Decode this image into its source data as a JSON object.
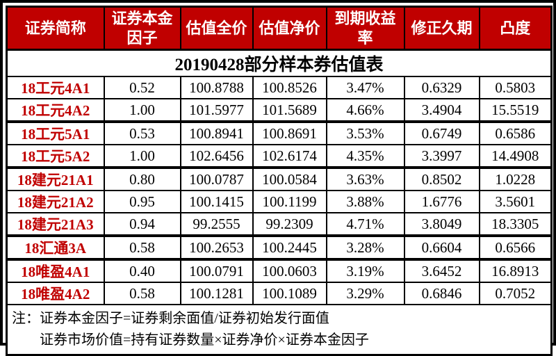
{
  "title": "20190428部分样本券估值表",
  "colors": {
    "header_background": "#c00000",
    "header_text": "#ffffff",
    "row_label_text": "#c00000",
    "border": "#000000",
    "body_text": "#000000",
    "page_background": "#ffffff"
  },
  "table": {
    "headers": [
      "证券简称",
      "证券本金因子",
      "估值全价",
      "估值净价",
      "到期收益率",
      "修正久期",
      "凸度"
    ],
    "rows": [
      {
        "name": "18工元4A1",
        "factor": "0.52",
        "full_price": "100.8788",
        "net_price": "100.8526",
        "ytm": "3.47%",
        "duration": "0.6329",
        "convexity": "0.5803"
      },
      {
        "name": "18工元4A2",
        "factor": "1.00",
        "full_price": "101.5977",
        "net_price": "101.5689",
        "ytm": "4.66%",
        "duration": "3.4904",
        "convexity": "15.5519"
      },
      {
        "name": "18工元5A1",
        "factor": "0.53",
        "full_price": "100.8941",
        "net_price": "100.8691",
        "ytm": "3.53%",
        "duration": "0.6749",
        "convexity": "0.6586"
      },
      {
        "name": "18工元5A2",
        "factor": "1.00",
        "full_price": "102.6456",
        "net_price": "102.6174",
        "ytm": "4.35%",
        "duration": "3.3997",
        "convexity": "14.4908"
      },
      {
        "name": "18建元21A1",
        "factor": "0.80",
        "full_price": "100.0787",
        "net_price": "100.0584",
        "ytm": "3.63%",
        "duration": "0.8502",
        "convexity": "1.0228"
      },
      {
        "name": "18建元21A2",
        "factor": "0.95",
        "full_price": "100.1415",
        "net_price": "100.1199",
        "ytm": "3.88%",
        "duration": "1.6776",
        "convexity": "3.5601"
      },
      {
        "name": "18建元21A3",
        "factor": "0.94",
        "full_price": "99.2555",
        "net_price": "99.2309",
        "ytm": "4.71%",
        "duration": "3.8049",
        "convexity": "18.3305"
      },
      {
        "name": "18汇通3A",
        "factor": "0.58",
        "full_price": "100.2653",
        "net_price": "100.2445",
        "ytm": "3.28%",
        "duration": "0.6604",
        "convexity": "0.6566"
      },
      {
        "name": "18唯盈4A1",
        "factor": "0.40",
        "full_price": "100.0791",
        "net_price": "100.0603",
        "ytm": "3.19%",
        "duration": "3.6452",
        "convexity": "16.8913"
      },
      {
        "name": "18唯盈4A2",
        "factor": "0.58",
        "full_price": "100.1281",
        "net_price": "100.1089",
        "ytm": "3.29%",
        "duration": "0.6846",
        "convexity": "0.7052"
      }
    ]
  },
  "notes": {
    "line1": "注：证券本金因子=证券剩余面值/证券初始发行面值",
    "line2": "证券市场价值=持有证券数量×证券净价×证券本金因子"
  }
}
